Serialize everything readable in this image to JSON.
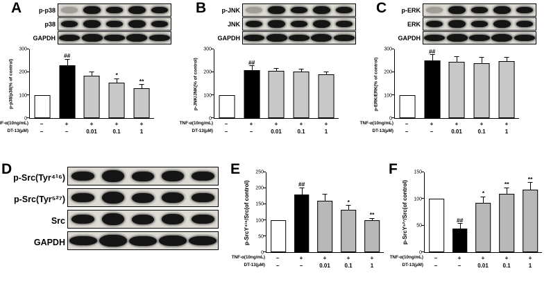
{
  "figure": {
    "panels": {
      "A": {
        "letter": "A",
        "blot_rows": [
          "p-p38",
          "p38",
          "GAPDH"
        ]
      },
      "B": {
        "letter": "B",
        "blot_rows": [
          "p-JNK",
          "JNK",
          "GAPDH"
        ]
      },
      "C": {
        "letter": "C",
        "blot_rows": [
          "p-ERK",
          "ERK",
          "GAPDH"
        ]
      },
      "D": {
        "letter": "D",
        "blot_rows": [
          "p-Src(Tyr⁴¹⁶)",
          "p-Src(Tyr⁵²⁷)",
          "Src",
          "GAPDH"
        ]
      },
      "E": {
        "letter": "E"
      },
      "F": {
        "letter": "F"
      }
    }
  },
  "chart_data": [
    {
      "type": "bar",
      "panel": "A",
      "title": "",
      "xlabel": "",
      "ylabel": "p-p38/p38(% of control)",
      "ylim": [
        0,
        300
      ],
      "yticks": [
        0,
        100,
        200,
        300
      ],
      "categories": [
        "Control",
        "TNF-α",
        "TNF-α+DT-13 0.01μM",
        "TNF-α+DT-13 0.1μM",
        "TNF-α+DT-13 1μM"
      ],
      "values": [
        100,
        230,
        185,
        155,
        130
      ],
      "errors": [
        0,
        25,
        15,
        15,
        15
      ],
      "sig": [
        "",
        "##",
        "",
        "*",
        "**"
      ],
      "bar_colors": [
        "#ffffff",
        "#000000",
        "#c8c8c8",
        "#c8c8c8",
        "#c8c8c8"
      ],
      "treatment_rows": [
        {
          "label": "TNF-α(10ng/mL)",
          "values": [
            "−",
            "+",
            "+",
            "+",
            "+"
          ]
        },
        {
          "label": "DT-13(μM)",
          "values": [
            "−",
            "−",
            "0.01",
            "0.1",
            "1"
          ]
        }
      ]
    },
    {
      "type": "bar",
      "panel": "B",
      "title": "",
      "xlabel": "",
      "ylabel": "p-JNK/JNK(% of control)",
      "ylim": [
        0,
        300
      ],
      "yticks": [
        0,
        100,
        200,
        300
      ],
      "categories": [
        "Control",
        "TNF-α",
        "TNF-α+DT-13 0.01μM",
        "TNF-α+DT-13 0.1μM",
        "TNF-α+DT-13 1μM"
      ],
      "values": [
        100,
        210,
        207,
        203,
        192
      ],
      "errors": [
        0,
        16,
        8,
        8,
        8
      ],
      "sig": [
        "",
        "##",
        "",
        "",
        ""
      ],
      "bar_colors": [
        "#ffffff",
        "#000000",
        "#c8c8c8",
        "#c8c8c8",
        "#c8c8c8"
      ],
      "treatment_rows": [
        {
          "label": "TNF-α(10ng/mL)",
          "values": [
            "−",
            "+",
            "+",
            "+",
            "+"
          ]
        },
        {
          "label": "DT-13(μM)",
          "values": [
            "−",
            "−",
            "0.01",
            "0.1",
            "1"
          ]
        }
      ]
    },
    {
      "type": "bar",
      "panel": "C",
      "title": "",
      "xlabel": "",
      "ylabel": "p-ERK/ERK(% of control)",
      "ylim": [
        0,
        300
      ],
      "yticks": [
        0,
        100,
        200,
        300
      ],
      "categories": [
        "Control",
        "TNF-α",
        "TNF-α+DT-13 0.01μM",
        "TNF-α+DT-13 0.1μM",
        "TNF-α+DT-13 1μM"
      ],
      "values": [
        100,
        253,
        247,
        240,
        250
      ],
      "errors": [
        0,
        22,
        20,
        25,
        15
      ],
      "sig": [
        "",
        "##",
        "",
        "",
        ""
      ],
      "bar_colors": [
        "#ffffff",
        "#000000",
        "#c8c8c8",
        "#c8c8c8",
        "#c8c8c8"
      ],
      "treatment_rows": [
        {
          "label": "TNF-α(10ng/mL)",
          "values": [
            "−",
            "+",
            "+",
            "+",
            "+"
          ]
        },
        {
          "label": "DT-13(μM)",
          "values": [
            "−",
            "−",
            "0.01",
            "0.1",
            "1"
          ]
        }
      ]
    },
    {
      "type": "bar",
      "panel": "E",
      "title": "",
      "xlabel": "",
      "ylabel": "p-SrcY⁴¹⁶/Src(of control)",
      "ylim": [
        0,
        250
      ],
      "yticks": [
        0,
        50,
        100,
        150,
        200,
        250
      ],
      "categories": [
        "Control",
        "TNF-α",
        "TNF-α+DT-13 0.01μM",
        "TNF-α+DT-13 0.1μM",
        "TNF-α+DT-13 1μM"
      ],
      "values": [
        100,
        180,
        160,
        133,
        100
      ],
      "errors": [
        0,
        20,
        20,
        12,
        5
      ],
      "sig": [
        "",
        "##",
        "",
        "*",
        "**"
      ],
      "bar_colors": [
        "#ffffff",
        "#000000",
        "#b8b8b8",
        "#b8b8b8",
        "#b8b8b8"
      ],
      "treatment_rows": [
        {
          "label": "TNF-α(10ng/mL)",
          "values": [
            "−",
            "+",
            "+",
            "+",
            "+"
          ]
        },
        {
          "label": "DT-13(μM)",
          "values": [
            "−",
            "−",
            "0.01",
            "0.1",
            "1"
          ]
        }
      ]
    },
    {
      "type": "bar",
      "panel": "F",
      "title": "",
      "xlabel": "",
      "ylabel": "p-SrcY⁵²⁷/Src(of control)",
      "ylim": [
        0,
        150
      ],
      "yticks": [
        0,
        50,
        100,
        150
      ],
      "categories": [
        "Control",
        "TNF-α",
        "TNF-α+DT-13 0.01μM",
        "TNF-α+DT-13 0.1μM",
        "TNF-α+DT-13 1μM"
      ],
      "values": [
        100,
        45,
        93,
        110,
        118
      ],
      "errors": [
        0,
        8,
        10,
        10,
        12
      ],
      "sig": [
        "",
        "##",
        "*",
        "**",
        "**"
      ],
      "bar_colors": [
        "#ffffff",
        "#000000",
        "#b8b8b8",
        "#b8b8b8",
        "#b8b8b8"
      ],
      "treatment_rows": [
        {
          "label": "TNF-α(10ng/mL)",
          "values": [
            "−",
            "+",
            "+",
            "+",
            "+"
          ]
        },
        {
          "label": "DT-13(μM)",
          "values": [
            "−",
            "−",
            "0.01",
            "0.1",
            "1"
          ]
        }
      ]
    }
  ]
}
